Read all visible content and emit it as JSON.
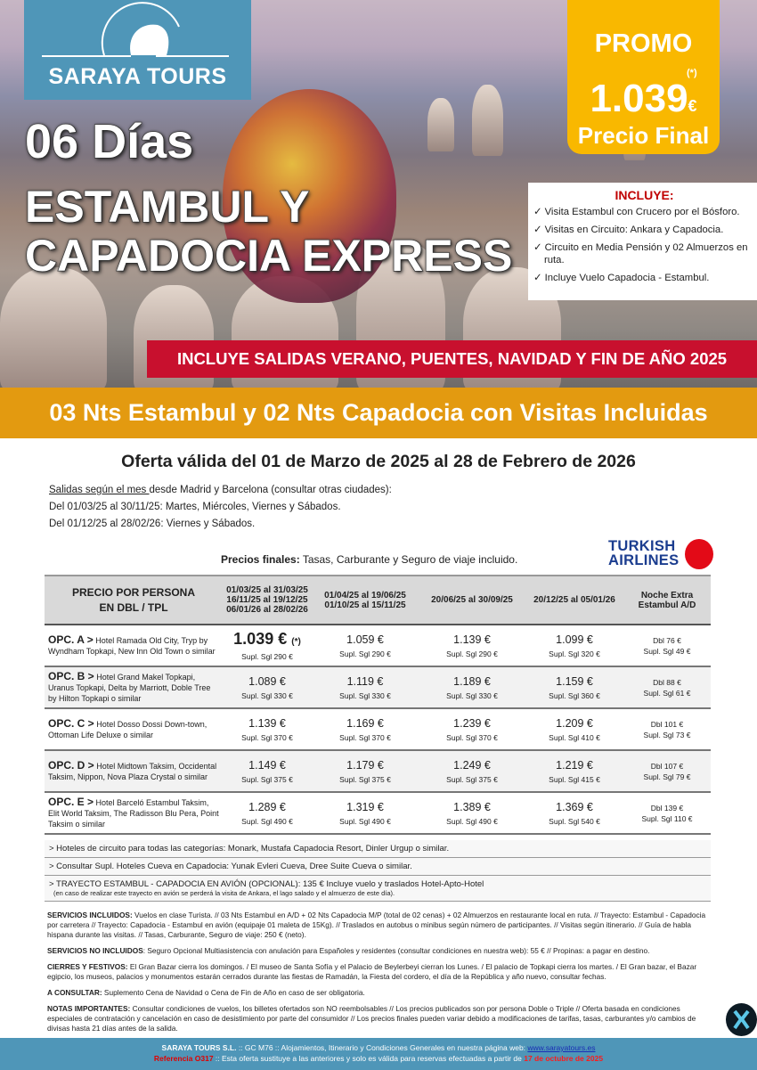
{
  "brand": {
    "name": "SARAYA TOURS",
    "color": "#4f96b8"
  },
  "promo": {
    "label": "PROMO",
    "asterisk": "(*)",
    "price": "1.039",
    "currency": "€",
    "final": "Precio Final",
    "color": "#f9b800"
  },
  "title": {
    "days": "06 Días",
    "line1": "ESTAMBUL Y",
    "line2": "CAPADOCIA EXPRESS"
  },
  "includes": {
    "heading": "INCLUYE:",
    "items": [
      "✓ Visita Estambul con Crucero por el Bósforo.",
      "✓ Visitas en Circuito: Ankara y Capadocia.",
      "✓ Circuito en Media Pensión y 02 Almuerzos en ruta.",
      "✓ Incluye Vuelo Capadocia - Estambul."
    ]
  },
  "banner_red": "INCLUYE SALIDAS VERANO, PUENTES, NAVIDAD Y FIN DE AÑO 2025",
  "banner_orange": "03 Nts Estambul y 02 Nts Capadocia con Visitas Incluidas",
  "oferta": "Oferta válida del 01 de Marzo de 2025 al 28 de Febrero de 2026",
  "salidas": {
    "u": "Salidas según el mes ",
    "rest": "desde Madrid y Barcelona (consultar otras ciudades):",
    "l1": "Del 01/03/25 al 30/11/25: Martes, Miércoles, Viernes y Sábados.",
    "l2": "Del 01/12/25 al 28/02/26: Viernes y Sábados."
  },
  "precios": {
    "b": "Precios finales:",
    "rest": " Tasas, Carburante y Seguro de viaje incluido."
  },
  "airline": {
    "l1": "TURKISH",
    "l2": "AIRLINES"
  },
  "table": {
    "headers": [
      "PRECIO POR PERSONA\nEN DBL / TPL",
      "01/03/25 al 31/03/25\n16/11/25 al 19/12/25\n06/01/26 al 28/02/26",
      "01/04/25 al 19/06/25\n01/10/25 al 15/11/25",
      "20/06/25 al 30/09/25",
      "20/12/25 al 05/01/26",
      "Noche Extra\nEstambul A/D"
    ],
    "rows": [
      {
        "opt": "OPC. A >",
        "hotels": " Hotel Ramada Old City, Tryp by Wyndham Topkapi, New Inn Old Town o similar",
        "prices": [
          "1.039 €",
          "1.059 €",
          "1.139 €",
          "1.099 €"
        ],
        "supl": [
          "Supl. Sgl 290 €",
          "Supl. Sgl 290 €",
          "Supl. Sgl 290 €",
          "Supl. Sgl 320 €"
        ],
        "extra": [
          "Dbl 76 €",
          "Supl. Sgl 49 €"
        ]
      },
      {
        "opt": "OPC. B >",
        "hotels": " Hotel Grand Makel Topkapi, Uranus Topkapi, Delta by Marriott, Doble Tree by Hilton Topkapi o similar",
        "prices": [
          "1.089 €",
          "1.119 €",
          "1.189 €",
          "1.159 €"
        ],
        "supl": [
          "Supl. Sgl 330 €",
          "Supl. Sgl 330 €",
          "Supl. Sgl 330 €",
          "Supl. Sgl 360 €"
        ],
        "extra": [
          "Dbl 88 €",
          "Supl. Sgl 61 €"
        ]
      },
      {
        "opt": "OPC. C >",
        "hotels": " Hotel Dosso Dossi Down-town, Ottoman Life Deluxe o similar",
        "prices": [
          "1.139 €",
          "1.169 €",
          "1.239 €",
          "1.209 €"
        ],
        "supl": [
          "Supl. Sgl 370 €",
          "Supl. Sgl 370 €",
          "Supl. Sgl 370 €",
          "Supl. Sgl 410 €"
        ],
        "extra": [
          "Dbl 101 €",
          "Supl. Sgl 73 €"
        ]
      },
      {
        "opt": "OPC. D >",
        "hotels": " Hotel Midtown Taksim, Occidental Taksim, Nippon, Nova Plaza Crystal o similar",
        "prices": [
          "1.149 €",
          "1.179 €",
          "1.249 €",
          "1.219 €"
        ],
        "supl": [
          "Supl. Sgl 375 €",
          "Supl. Sgl 375 €",
          "Supl. Sgl 375 €",
          "Supl. Sgl 415 €"
        ],
        "extra": [
          "Dbl 107 €",
          "Supl. Sgl 79 €"
        ]
      },
      {
        "opt": "OPC. E >",
        "hotels": " Hotel Barceló Estambul Taksim, Elit World Taksim, The Radisson Blu Pera, Point Taksim o similar",
        "prices": [
          "1.289 €",
          "1.319 €",
          "1.389 €",
          "1.369 €"
        ],
        "supl": [
          "Supl. Sgl 490 €",
          "Supl. Sgl 490 €",
          "Supl. Sgl 490 €",
          "Supl. Sgl 540 €"
        ],
        "extra": [
          "Dbl 139 €",
          "Supl. Sgl 110 €"
        ]
      }
    ],
    "promo_mark": "(*)"
  },
  "notes": [
    "> Hoteles de circuito para todas las categorías: Monark, Mustafa Capadocia Resort, Dinler Urgup o similar.",
    "> Consultar Supl. Hoteles Cueva en Capadocia: Yunak Evleri Cueva, Dree Suite Cueva o similar.",
    "> TRAYECTO ESTAMBUL - CAPADOCIA EN AVIÓN (OPCIONAL): 135 € Incluye vuelo y traslados Hotel-Apto-Hotel"
  ],
  "notes_small": "(en caso de realizar este trayecto en avión se perderá la visita de Ankara, el lago salado y el almuerzo de este día).",
  "services": [
    {
      "b": "SERVICIOS INCLUIDOS:",
      "t": " Vuelos en clase Turista. // 03 Nts Estambul en A/D + 02 Nts Capadocia M/P (total de 02 cenas) + 02 Almuerzos en restaurante local en ruta. // Trayecto: Estambul - Capadocia por carretera // Trayecto: Capadocia - Estambul en avión (equipaje 01 maleta de 15Kg). // Traslados en autobus o minibus según número de participantes. // Visitas según itinerario. // Guía de habla hispana durante las visitas. // Tasas, Carburante, Seguro de viaje: 250 € (neto)."
    },
    {
      "b": "SERVICIOS NO INCLUIDOS",
      "t": ": Seguro Opcional Multiasistencia con anulación para Españoles y residentes (consultar condiciones en nuestra web): 55 € // Propinas: a pagar en destino."
    },
    {
      "b": "CIERRES Y FESTIVOS:",
      "t": " El Gran Bazar cierra los domingos. / El museo de Santa Sofía y el Palacio de Beylerbeyi cierran los Lunes. / El palacio de Topkapi cierra los martes. / El Gran bazar, el Bazar egipcio, los museos, palacios y monumentos estarán cerrados durante las fiestas de Ramadán, la Fiesta del cordero, el día de la República y año nuevo, consultar fechas."
    },
    {
      "b": "A CONSULTAR:",
      "t": " Suplemento Cena de Navidad o Cena de Fin de Año en caso de ser obligatoria."
    },
    {
      "b": "NOTAS IMPORTANTES:",
      "t": " Consultar condiciones de vuelos, los billetes ofertados son NO reembolsables // Los precios publicados son por persona Doble o Triple // Oferta basada en condiciones especiales de contratación y cancelación en caso de desistimiento por parte del consumidor // Los precios finales pueden variar debido a modificaciones de tarifas, tasas, carburantes y/o cambios de divisas hasta 21 días antes de la salida."
    }
  ],
  "footer": {
    "company": "SARAYA TOURS S.L.",
    "l1": " :: GC M76 ::  Alojamientos, Itinerario y Condiciones Generales en nuestra página web:  ",
    "web": "www.sarayatours.es",
    "ref": "Referencia O317",
    "l2": " :: Esta oferta sustituye a las anteriores y solo es válida para reservas efectuadas a partir de ",
    "date": "17 de octubre de 2025"
  }
}
